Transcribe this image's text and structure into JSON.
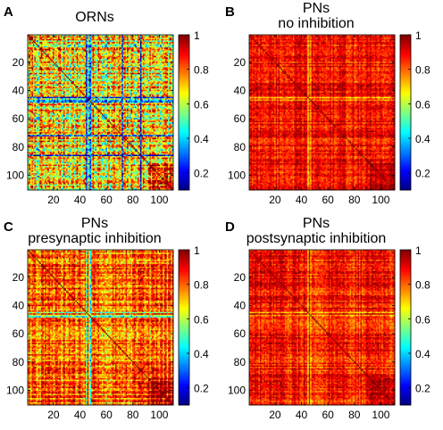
{
  "panels": [
    {
      "letter": "A",
      "title_lines": [
        "ORNs"
      ]
    },
    {
      "letter": "B",
      "title_lines": [
        "PNs",
        "no inhibition"
      ]
    },
    {
      "letter": "C",
      "title_lines": [
        "PNs",
        "presynaptic inhibition"
      ]
    },
    {
      "letter": "D",
      "title_lines": [
        "PNs",
        "postsynaptic inhibition"
      ]
    }
  ],
  "chart_data": [
    {
      "type": "heatmap",
      "title": "ORNs",
      "xlabel": "",
      "ylabel": "",
      "size": 110,
      "xlim": [
        1,
        110
      ],
      "ylim": [
        1,
        110
      ],
      "x_ticks": [
        20,
        40,
        60,
        80,
        100
      ],
      "y_ticks": [
        20,
        40,
        60,
        80,
        100
      ],
      "colorbar": {
        "ticks": [
          0.2,
          0.4,
          0.6,
          0.8,
          1
        ],
        "range": [
          0.1,
          1
        ],
        "colormap": "jet"
      },
      "diagonal": 1,
      "mean_offdiagonal": 0.68,
      "low_value_bands": [
        45,
        47,
        48,
        72,
        86
      ]
    },
    {
      "type": "heatmap",
      "title": "PNs no inhibition",
      "xlabel": "",
      "ylabel": "",
      "size": 110,
      "xlim": [
        1,
        110
      ],
      "ylim": [
        1,
        110
      ],
      "x_ticks": [
        20,
        40,
        60,
        80,
        100
      ],
      "y_ticks": [
        20,
        40,
        60,
        80,
        100
      ],
      "colorbar": {
        "ticks": [
          0.2,
          0.4,
          0.6,
          0.8,
          1
        ],
        "range": [
          0.1,
          1
        ],
        "colormap": "jet"
      },
      "diagonal": 1,
      "mean_offdiagonal": 0.88,
      "low_value_bands": [
        45,
        47
      ]
    },
    {
      "type": "heatmap",
      "title": "PNs presynaptic inhibition",
      "xlabel": "",
      "ylabel": "",
      "size": 110,
      "xlim": [
        1,
        110
      ],
      "ylim": [
        1,
        110
      ],
      "x_ticks": [
        20,
        40,
        60,
        80,
        100
      ],
      "y_ticks": [
        20,
        40,
        60,
        80,
        100
      ],
      "colorbar": {
        "ticks": [
          0.2,
          0.4,
          0.6,
          0.8,
          1
        ],
        "range": [
          0.1,
          1
        ],
        "colormap": "jet"
      },
      "diagonal": 1,
      "mean_offdiagonal": 0.8,
      "low_value_bands": [
        45,
        47,
        48
      ]
    },
    {
      "type": "heatmap",
      "title": "PNs postsynaptic inhibition",
      "xlabel": "",
      "ylabel": "",
      "size": 110,
      "xlim": [
        1,
        110
      ],
      "ylim": [
        1,
        110
      ],
      "x_ticks": [
        20,
        40,
        60,
        80,
        100
      ],
      "y_ticks": [
        20,
        40,
        60,
        80,
        100
      ],
      "colorbar": {
        "ticks": [
          0.2,
          0.4,
          0.6,
          0.8,
          1
        ],
        "range": [
          0.1,
          1
        ],
        "colormap": "jet"
      },
      "diagonal": 1,
      "mean_offdiagonal": 0.87,
      "low_value_bands": [
        45,
        47
      ]
    }
  ]
}
